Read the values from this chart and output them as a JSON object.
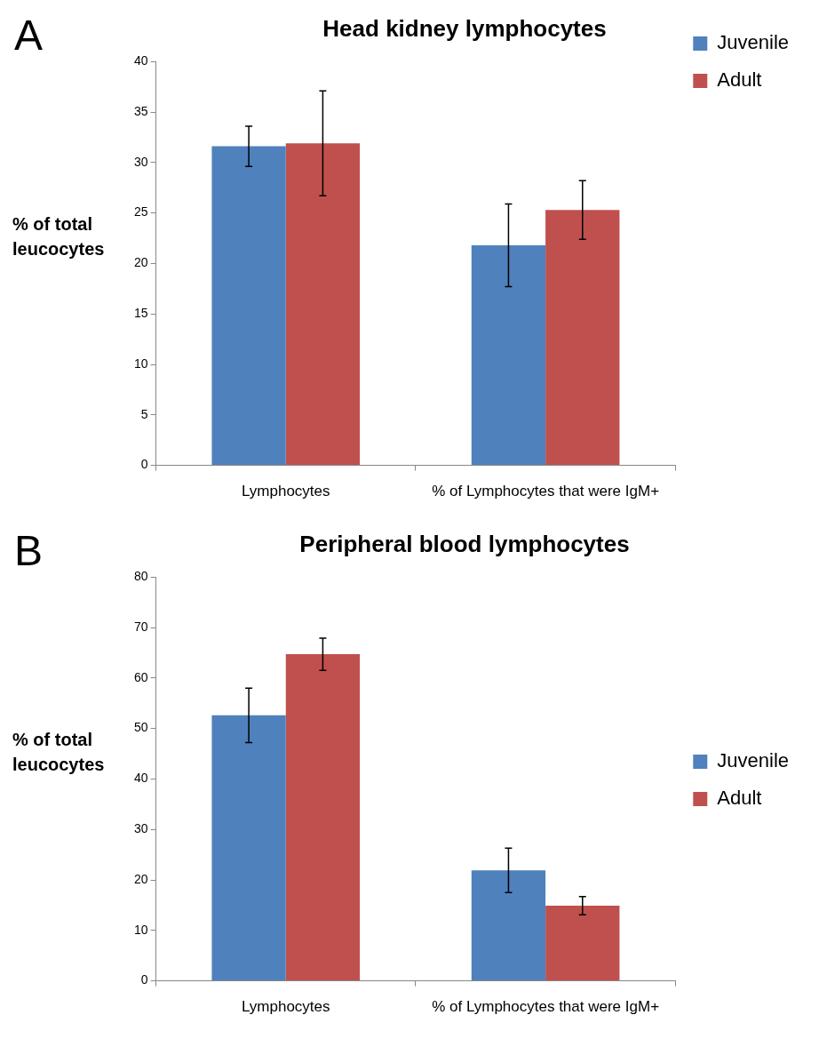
{
  "chart_data": [
    {
      "type": "bar",
      "title": "Head kidney lymphocytes",
      "ylabel": "% of total leucocytes",
      "annotations": [
        "A"
      ],
      "categories": [
        "Lymphocytes",
        "% of Lymphocytes that were IgM+"
      ],
      "series": [
        {
          "name": "Juvenile",
          "color": "#4f81bd",
          "values": [
            31.6,
            21.8
          ],
          "errors": [
            2.0,
            4.1
          ]
        },
        {
          "name": "Adult",
          "color": "#c0504d",
          "values": [
            31.9,
            25.3
          ],
          "errors": [
            5.2,
            2.9
          ]
        }
      ],
      "ylim": [
        0,
        40
      ],
      "yticks": [
        0,
        5,
        10,
        15,
        20,
        25,
        30,
        35,
        40
      ],
      "grid": false,
      "legend": "top right"
    },
    {
      "type": "bar",
      "title": "Peripheral blood lymphocytes",
      "ylabel": "% of total leucocytes",
      "annotations": [
        "B"
      ],
      "categories": [
        "Lymphocytes",
        "% of Lymphocytes that were IgM+"
      ],
      "series": [
        {
          "name": "Juvenile",
          "color": "#4f81bd",
          "values": [
            52.6,
            21.9
          ],
          "errors": [
            5.4,
            4.4
          ]
        },
        {
          "name": "Adult",
          "color": "#c0504d",
          "values": [
            64.7,
            14.9
          ],
          "errors": [
            3.2,
            1.8
          ]
        }
      ],
      "ylim": [
        0,
        80
      ],
      "yticks": [
        0,
        10,
        20,
        30,
        40,
        50,
        60,
        70,
        80
      ],
      "grid": false,
      "legend": "right"
    }
  ]
}
